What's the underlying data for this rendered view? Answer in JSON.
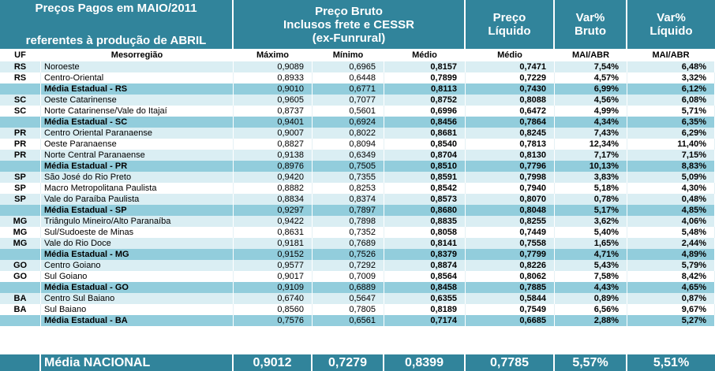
{
  "header": {
    "title_line1": "Preços Pagos em MAIO/2011",
    "title_line2": "referentes à produção de ABRIL",
    "bruto_line1": "Preço Bruto",
    "bruto_line2": "Inclusos frete e CESSR",
    "bruto_line3": "(ex-Funrural)",
    "liquido_line1": "Preço",
    "liquido_line2": "Líquido",
    "var_bruto_line1": "Var%",
    "var_bruto_line2": "Bruto",
    "var_liq_line1": "Var%",
    "var_liq_line2": "Líquido"
  },
  "columns": [
    "UF",
    "Mesorregião",
    "Máximo",
    "Mínimo",
    "Médio",
    "Médio",
    "MAI/ABR",
    "MAI/ABR"
  ],
  "rows": [
    {
      "type": "a",
      "uf": "RS",
      "meso": "Noroeste",
      "max": "0,9089",
      "min": "0,6965",
      "med": "0,8157",
      "liq": "0,7471",
      "vb": "7,54%",
      "vl": "6,48%"
    },
    {
      "type": "b",
      "uf": "RS",
      "meso": "Centro-Oriental",
      "max": "0,8933",
      "min": "0,6448",
      "med": "0,7899",
      "liq": "0,7229",
      "vb": "4,57%",
      "vl": "3,32%"
    },
    {
      "type": "avg",
      "uf": "",
      "meso": "Média Estadual - RS",
      "max": "0,9010",
      "min": "0,6771",
      "med": "0,8113",
      "liq": "0,7430",
      "vb": "6,99%",
      "vl": "6,12%"
    },
    {
      "type": "a",
      "uf": "SC",
      "meso": "Oeste Catarinense",
      "max": "0,9605",
      "min": "0,7077",
      "med": "0,8752",
      "liq": "0,8088",
      "vb": "4,56%",
      "vl": "6,08%"
    },
    {
      "type": "b",
      "uf": "SC",
      "meso": "Norte Catarinense/Vale do Itajaí",
      "max": "0,8737",
      "min": "0,5601",
      "med": "0,6996",
      "liq": "0,6472",
      "vb": "4,99%",
      "vl": "5,71%"
    },
    {
      "type": "avg",
      "uf": "",
      "meso": "Média Estadual - SC",
      "max": "0,9401",
      "min": "0,6924",
      "med": "0,8456",
      "liq": "0,7864",
      "vb": "4,34%",
      "vl": "6,35%"
    },
    {
      "type": "a",
      "uf": "PR",
      "meso": "Centro Oriental Paranaense",
      "max": "0,9007",
      "min": "0,8022",
      "med": "0,8681",
      "liq": "0,8245",
      "vb": "7,43%",
      "vl": "6,29%"
    },
    {
      "type": "b",
      "uf": "PR",
      "meso": "Oeste Paranaense",
      "max": "0,8827",
      "min": "0,8094",
      "med": "0,8540",
      "liq": "0,7813",
      "vb": "12,34%",
      "vl": "11,40%"
    },
    {
      "type": "a",
      "uf": "PR",
      "meso": "Norte Central Paranaense",
      "max": "0,9138",
      "min": "0,6349",
      "med": "0,8704",
      "liq": "0,8130",
      "vb": "7,17%",
      "vl": "7,15%"
    },
    {
      "type": "avg",
      "uf": "",
      "meso": "Média Estadual - PR",
      "max": "0,8976",
      "min": "0,7505",
      "med": "0,8510",
      "liq": "0,7796",
      "vb": "10,13%",
      "vl": "8,83%"
    },
    {
      "type": "a",
      "uf": "SP",
      "meso": "São José do Rio Preto",
      "max": "0,9420",
      "min": "0,7355",
      "med": "0,8591",
      "liq": "0,7998",
      "vb": "3,83%",
      "vl": "5,09%"
    },
    {
      "type": "b",
      "uf": "SP",
      "meso": "Macro Metropolitana Paulista",
      "max": "0,8882",
      "min": "0,8253",
      "med": "0,8542",
      "liq": "0,7940",
      "vb": "5,18%",
      "vl": "4,30%"
    },
    {
      "type": "a",
      "uf": "SP",
      "meso": "Vale do Paraíba Paulista",
      "max": "0,8834",
      "min": "0,8374",
      "med": "0,8573",
      "liq": "0,8070",
      "vb": "0,78%",
      "vl": "0,48%"
    },
    {
      "type": "avg",
      "uf": "",
      "meso": "Média Estadual - SP",
      "max": "0,9297",
      "min": "0,7897",
      "med": "0,8680",
      "liq": "0,8048",
      "vb": "5,17%",
      "vl": "4,85%"
    },
    {
      "type": "a",
      "uf": "MG",
      "meso": "Triângulo Mineiro/Alto Paranaíba",
      "max": "0,9422",
      "min": "0,7898",
      "med": "0,8835",
      "liq": "0,8255",
      "vb": "3,62%",
      "vl": "4,06%"
    },
    {
      "type": "b",
      "uf": "MG",
      "meso": "Sul/Sudoeste de Minas",
      "max": "0,8631",
      "min": "0,7352",
      "med": "0,8058",
      "liq": "0,7449",
      "vb": "5,40%",
      "vl": "5,48%"
    },
    {
      "type": "a",
      "uf": "MG",
      "meso": "Vale do Rio Doce",
      "max": "0,9181",
      "min": "0,7689",
      "med": "0,8141",
      "liq": "0,7558",
      "vb": "1,65%",
      "vl": "2,44%"
    },
    {
      "type": "avg",
      "uf": "",
      "meso": "Média Estadual - MG",
      "max": "0,9152",
      "min": "0,7526",
      "med": "0,8379",
      "liq": "0,7799",
      "vb": "4,71%",
      "vl": "4,89%"
    },
    {
      "type": "a",
      "uf": "GO",
      "meso": "Centro Goiano",
      "max": "0,9577",
      "min": "0,7292",
      "med": "0,8874",
      "liq": "0,8226",
      "vb": "5,43%",
      "vl": "5,79%"
    },
    {
      "type": "b",
      "uf": "GO",
      "meso": "Sul Goiano",
      "max": "0,9017",
      "min": "0,7009",
      "med": "0,8564",
      "liq": "0,8062",
      "vb": "7,58%",
      "vl": "8,42%"
    },
    {
      "type": "avg",
      "uf": "",
      "meso": "Média Estadual - GO",
      "max": "0,9109",
      "min": "0,6889",
      "med": "0,8458",
      "liq": "0,7885",
      "vb": "4,43%",
      "vl": "4,65%"
    },
    {
      "type": "a",
      "uf": "BA",
      "meso": "Centro Sul Baiano",
      "max": "0,6740",
      "min": "0,5647",
      "med": "0,6355",
      "liq": "0,5844",
      "vb": "0,89%",
      "vl": "0,87%"
    },
    {
      "type": "b",
      "uf": "BA",
      "meso": "Sul Baiano",
      "max": "0,8560",
      "min": "0,7805",
      "med": "0,8189",
      "liq": "0,7549",
      "vb": "6,56%",
      "vl": "9,67%"
    },
    {
      "type": "avg",
      "uf": "",
      "meso": "Média Estadual - BA",
      "max": "0,7576",
      "min": "0,6561",
      "med": "0,7174",
      "liq": "0,6685",
      "vb": "2,88%",
      "vl": "5,27%"
    }
  ],
  "total": {
    "label": "Média NACIONAL",
    "max": "0,9012",
    "min": "0,7279",
    "med": "0,8399",
    "liq": "0,7785",
    "vb": "5,57%",
    "vl": "5,51%"
  }
}
